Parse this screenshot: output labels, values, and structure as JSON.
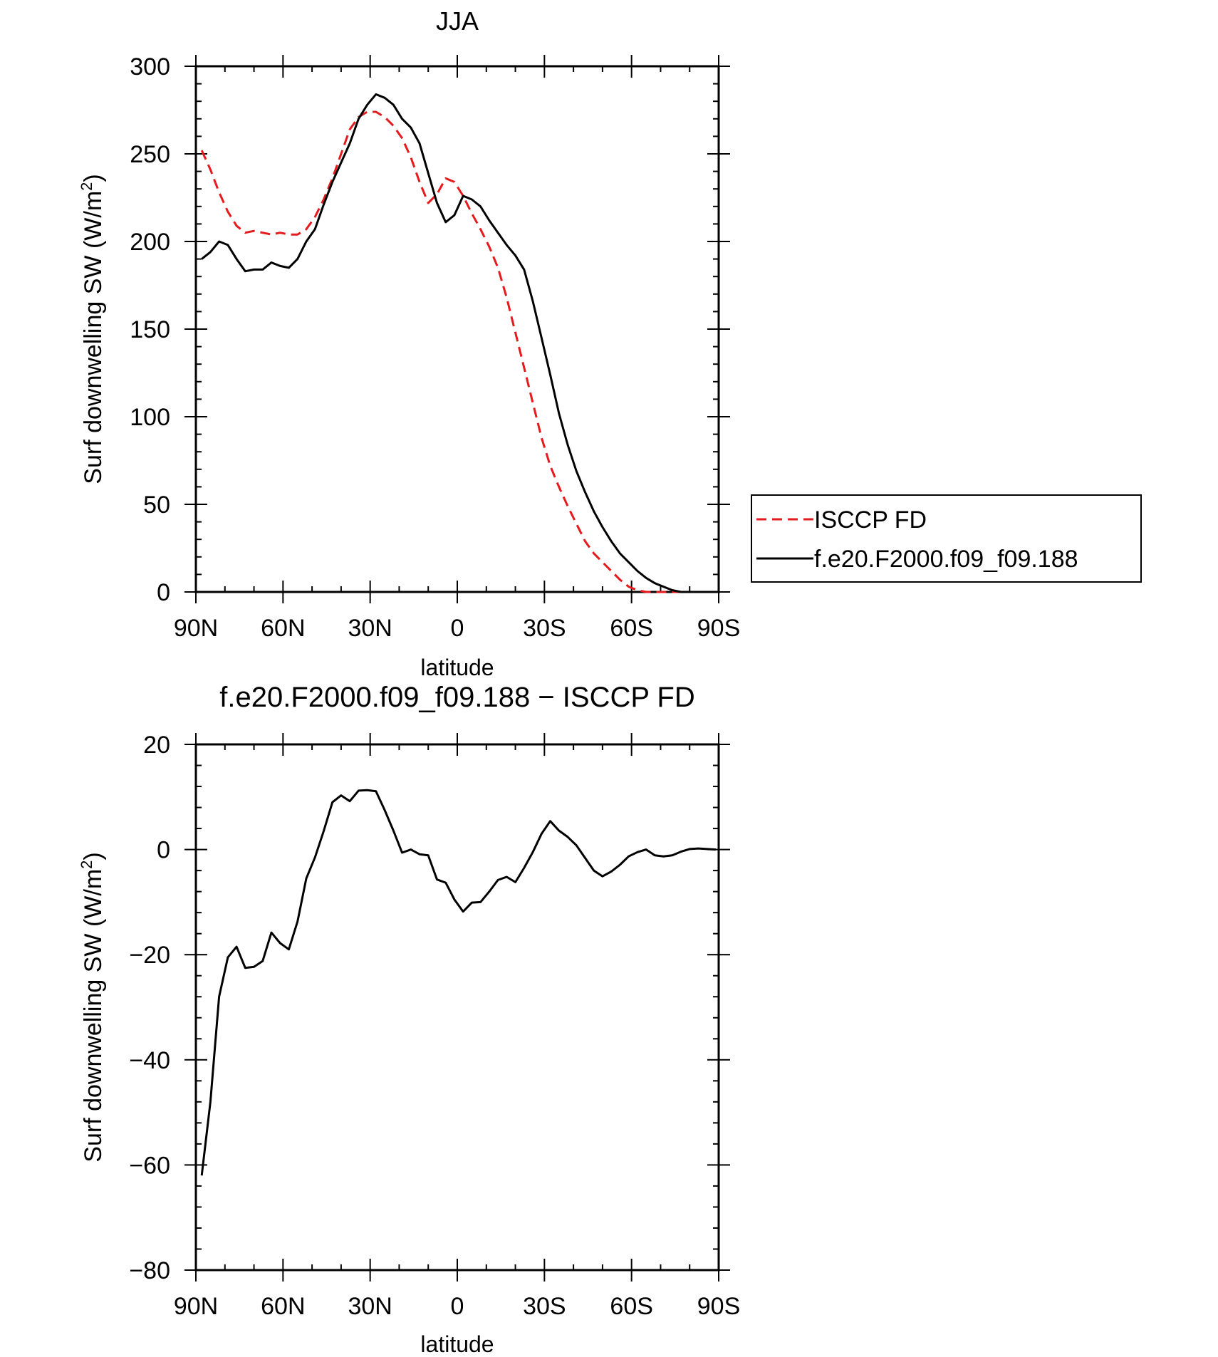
{
  "colors": {
    "model": "#000000",
    "obs": "#e41a1c",
    "axis": "#000000"
  },
  "chart_data": [
    {
      "type": "line",
      "title": "JJA",
      "xlabel": "latitude",
      "ylabel_main": "Surf downwelling SW (W/m",
      "ylabel_sup": "2",
      "ylabel_close": ")",
      "xlim": [
        90,
        -90
      ],
      "ylim": [
        0,
        300
      ],
      "xticks": [
        {
          "value": 90,
          "label": "90N"
        },
        {
          "value": 60,
          "label": "60N"
        },
        {
          "value": 30,
          "label": "30N"
        },
        {
          "value": 0,
          "label": "0"
        },
        {
          "value": -30,
          "label": "30S"
        },
        {
          "value": -60,
          "label": "60S"
        },
        {
          "value": -90,
          "label": "90S"
        }
      ],
      "yticks": [
        {
          "value": 0,
          "label": "0"
        },
        {
          "value": 50,
          "label": "50"
        },
        {
          "value": 100,
          "label": "100"
        },
        {
          "value": 150,
          "label": "150"
        },
        {
          "value": 200,
          "label": "200"
        },
        {
          "value": 250,
          "label": "250"
        },
        {
          "value": 300,
          "label": "300"
        }
      ],
      "legend": {
        "placement": "right",
        "entries": [
          {
            "name": "ISCCP FD",
            "style": "dashed",
            "color": "#e41a1c"
          },
          {
            "name": "f.e20.F2000.f09_f09.188",
            "style": "solid",
            "color": "#000000"
          }
        ]
      },
      "series": [
        {
          "name": "ISCCP FD",
          "style": "dashed",
          "x": [
            88,
            85,
            82,
            79,
            76,
            73,
            70,
            67,
            64,
            61,
            58,
            55,
            52,
            49,
            46,
            43,
            40,
            37,
            34,
            31,
            28,
            25,
            22,
            19,
            16,
            13,
            10,
            7,
            4,
            1,
            -2,
            -5,
            -8,
            -11,
            -14,
            -17,
            -20,
            -23,
            -26,
            -29,
            -32,
            -35,
            -38,
            -41,
            -44,
            -47,
            -50,
            -53,
            -56,
            -59,
            -62,
            -65,
            -68,
            -71,
            -74,
            -77,
            -80,
            -83,
            -86,
            -89
          ],
          "y": [
            252,
            241,
            228,
            217,
            209,
            205,
            206,
            205,
            204,
            205,
            204,
            204,
            207,
            214,
            224,
            236,
            250,
            264,
            271,
            274,
            274,
            271,
            266,
            259,
            248,
            234,
            222,
            227,
            236,
            234,
            226,
            216,
            207,
            197,
            185,
            168,
            148,
            128,
            108,
            88,
            72,
            60,
            49,
            39,
            29,
            22,
            17,
            12,
            7,
            3,
            1,
            0,
            0,
            0,
            0,
            0,
            0,
            0,
            0,
            0
          ]
        },
        {
          "name": "f.e20.F2000.f09_f09.188",
          "style": "solid",
          "x": [
            88,
            85,
            82,
            79,
            76,
            73,
            70,
            67,
            64,
            61,
            58,
            55,
            52,
            49,
            46,
            43,
            40,
            37,
            34,
            31,
            28,
            25,
            22,
            19,
            16,
            13,
            10,
            7,
            4,
            1,
            -2,
            -5,
            -8,
            -11,
            -14,
            -17,
            -20,
            -23,
            -26,
            -29,
            -32,
            -35,
            -38,
            -41,
            -44,
            -47,
            -50,
            -53,
            -56,
            -59,
            -62,
            -65,
            -68,
            -71,
            -74,
            -77,
            -80,
            -83,
            -86,
            -89
          ],
          "y": [
            190,
            194,
            200,
            198,
            190,
            183,
            184,
            184,
            188,
            186,
            185,
            190,
            200,
            207,
            221,
            234,
            245,
            256,
            270,
            278,
            284,
            282,
            278,
            270,
            265,
            256,
            239,
            222,
            211,
            215,
            226,
            224,
            220,
            212,
            205,
            198,
            192,
            184,
            166,
            145,
            124,
            102,
            84,
            69,
            57,
            46,
            37,
            29,
            22,
            17,
            12,
            8,
            5,
            3,
            1,
            0,
            0,
            0,
            0,
            0
          ]
        }
      ]
    },
    {
      "type": "line",
      "title": "f.e20.F2000.f09_f09.188 − ISCCP FD",
      "xlabel": "latitude",
      "ylabel_main": "Surf downwelling SW (W/m",
      "ylabel_sup": "2",
      "ylabel_close": ")",
      "xlim": [
        90,
        -90
      ],
      "ylim": [
        -80,
        20
      ],
      "xticks": [
        {
          "value": 90,
          "label": "90N"
        },
        {
          "value": 60,
          "label": "60N"
        },
        {
          "value": 30,
          "label": "30N"
        },
        {
          "value": 0,
          "label": "0"
        },
        {
          "value": -30,
          "label": "30S"
        },
        {
          "value": -60,
          "label": "60S"
        },
        {
          "value": -90,
          "label": "90S"
        }
      ],
      "yticks": [
        {
          "value": -80,
          "label": "−80"
        },
        {
          "value": -60,
          "label": "−60"
        },
        {
          "value": -40,
          "label": "−40"
        },
        {
          "value": -20,
          "label": "−20"
        },
        {
          "value": 0,
          "label": "0"
        },
        {
          "value": 20,
          "label": "20"
        }
      ],
      "series": [
        {
          "name": "",
          "style": "solid",
          "x": [
            88,
            85,
            82,
            79,
            76,
            73,
            70,
            67,
            64,
            61,
            58,
            55,
            52,
            49,
            46,
            43,
            40,
            37,
            34,
            31,
            28,
            25,
            22,
            19,
            16,
            13,
            10,
            7,
            4,
            1,
            -2,
            -5,
            -8,
            -11,
            -14,
            -17,
            -20,
            -23,
            -26,
            -29,
            -32,
            -35,
            -38,
            -41,
            -44,
            -47,
            -50,
            -53,
            -56,
            -59,
            -62,
            -65,
            -68,
            -71,
            -74,
            -77,
            -80,
            -83,
            -86,
            -89
          ],
          "y": [
            -62,
            -48,
            -28,
            -20.5,
            -18.5,
            -22.5,
            -22.3,
            -21.2,
            -15.8,
            -17.8,
            -19,
            -13.7,
            -5.5,
            -1.5,
            3.5,
            9,
            10.3,
            9.2,
            11.2,
            11.3,
            11.1,
            7.5,
            3.6,
            -0.6,
            0,
            -0.9,
            -1.1,
            -5.7,
            -6.3,
            -9.5,
            -11.8,
            -10.1,
            -10,
            -8,
            -5.8,
            -5.2,
            -6.2,
            -3.5,
            -0.5,
            3,
            5.4,
            3.6,
            2.4,
            0.8,
            -1.6,
            -4,
            -5.1,
            -4.2,
            -2.9,
            -1.3,
            -0.5,
            0,
            -1.1,
            -1.3,
            -1.1,
            -0.4,
            0.1,
            0.2,
            0.1,
            0
          ]
        }
      ]
    }
  ]
}
